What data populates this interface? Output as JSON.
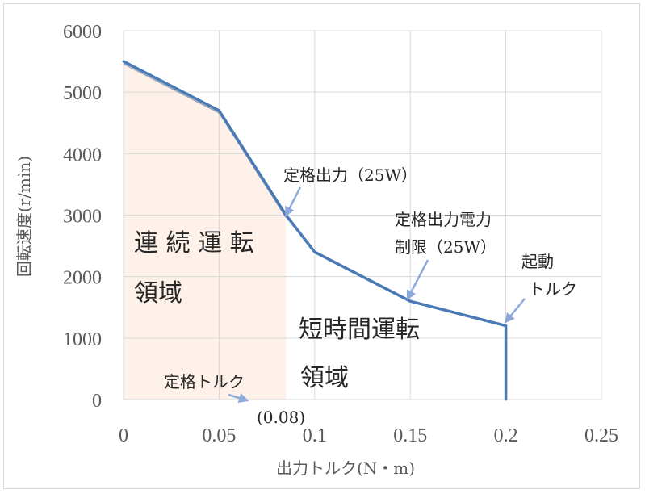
{
  "chart_data": {
    "type": "line",
    "title": "",
    "xlabel": "出力トルク(N・m)",
    "ylabel": "回転速度(r/min)",
    "xlim": [
      0,
      0.25
    ],
    "ylim": [
      0,
      6000
    ],
    "x_ticks": [
      "0",
      "0.05",
      "0.1",
      "0.15",
      "0.2",
      "0.25"
    ],
    "y_ticks": [
      "0",
      "1000",
      "2000",
      "3000",
      "4000",
      "5000",
      "6000"
    ],
    "grid": true,
    "colors": {
      "line": "#4a7ab5",
      "continuous_fill": "#fdf1ea",
      "arrow": "#8eaadb",
      "grid": "#d9d9d9"
    },
    "series": [
      {
        "x": [
          0,
          0.05,
          0.085,
          0.1,
          0.15,
          0.2,
          0.2
        ],
        "y": [
          5500,
          4700,
          3000,
          2400,
          1600,
          1200,
          0
        ]
      }
    ],
    "continuous_region_boundary": {
      "x": [
        0,
        0.05,
        0.085,
        0.085,
        0
      ],
      "y": [
        5500,
        4700,
        3000,
        0,
        0
      ]
    },
    "annotations": {
      "continuous_region": [
        "連 続 運 転",
        "領域"
      ],
      "short_time_region": [
        "短時間運転",
        "領域"
      ],
      "rated_output": "定格出力（25W）",
      "rated_power_limit": [
        "定格出力電力",
        "制限（25W）"
      ],
      "starting_torque": [
        "起動",
        "トルク"
      ],
      "rated_torque": [
        "定格トルク",
        "(0.08)"
      ]
    }
  }
}
